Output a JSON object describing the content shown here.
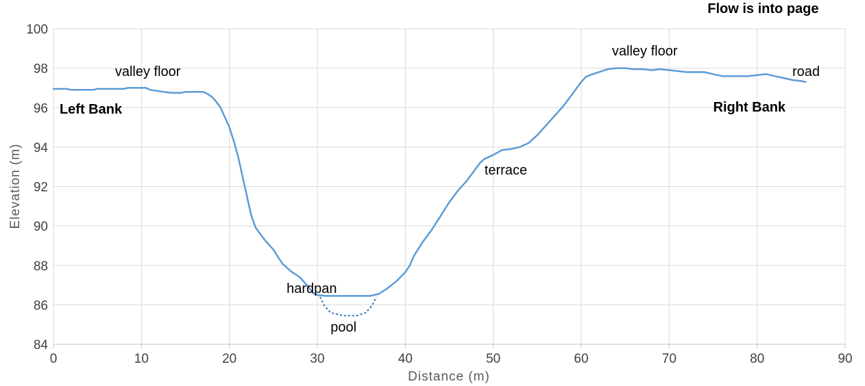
{
  "chart_data": {
    "type": "line",
    "title": "Flow is into page",
    "xlabel": "Distance (m)",
    "ylabel": "Elevation (m)",
    "xlim": [
      0,
      90
    ],
    "ylim": [
      84,
      100
    ],
    "xticks": [
      0,
      10,
      20,
      30,
      40,
      50,
      60,
      70,
      80,
      90
    ],
    "yticks": [
      84,
      86,
      88,
      90,
      92,
      94,
      96,
      98,
      100
    ],
    "grid": true,
    "series": [
      {
        "style": "solid",
        "color": "#5b9bd5",
        "points": [
          [
            0,
            96.95
          ],
          [
            1.5,
            96.95
          ],
          [
            2,
            96.9
          ],
          [
            4.5,
            96.9
          ],
          [
            5,
            96.95
          ],
          [
            8,
            96.95
          ],
          [
            8.5,
            97.0
          ],
          [
            10.5,
            97.0
          ],
          [
            11,
            96.9
          ],
          [
            12.5,
            96.8
          ],
          [
            13.5,
            96.75
          ],
          [
            14.5,
            96.75
          ],
          [
            15,
            96.8
          ],
          [
            17,
            96.8
          ],
          [
            17.5,
            96.7
          ],
          [
            18,
            96.55
          ],
          [
            18.5,
            96.3
          ],
          [
            19,
            96.0
          ],
          [
            19.5,
            95.5
          ],
          [
            20,
            95.0
          ],
          [
            20.5,
            94.3
          ],
          [
            21,
            93.5
          ],
          [
            21.5,
            92.5
          ],
          [
            22,
            91.5
          ],
          [
            22.5,
            90.5
          ],
          [
            23,
            89.9
          ],
          [
            23.5,
            89.6
          ],
          [
            24,
            89.3
          ],
          [
            25,
            88.8
          ],
          [
            26,
            88.1
          ],
          [
            27,
            87.7
          ],
          [
            28,
            87.4
          ],
          [
            29,
            86.9
          ],
          [
            29.5,
            86.6
          ],
          [
            30,
            86.5
          ],
          [
            31,
            86.45
          ],
          [
            36,
            86.45
          ],
          [
            37,
            86.55
          ],
          [
            38,
            86.85
          ],
          [
            39,
            87.2
          ],
          [
            40,
            87.65
          ],
          [
            40.5,
            88.0
          ],
          [
            41,
            88.5
          ],
          [
            42,
            89.2
          ],
          [
            43,
            89.8
          ],
          [
            44,
            90.5
          ],
          [
            45,
            91.2
          ],
          [
            46,
            91.8
          ],
          [
            47,
            92.3
          ],
          [
            48,
            92.9
          ],
          [
            48.5,
            93.2
          ],
          [
            49,
            93.4
          ],
          [
            50,
            93.6
          ],
          [
            51,
            93.85
          ],
          [
            52,
            93.9
          ],
          [
            53,
            94.0
          ],
          [
            54,
            94.2
          ],
          [
            55,
            94.6
          ],
          [
            56,
            95.1
          ],
          [
            57,
            95.6
          ],
          [
            58,
            96.1
          ],
          [
            59,
            96.7
          ],
          [
            60,
            97.3
          ],
          [
            60.5,
            97.55
          ],
          [
            61,
            97.65
          ],
          [
            62,
            97.8
          ],
          [
            63,
            97.95
          ],
          [
            64,
            98.0
          ],
          [
            65,
            98.0
          ],
          [
            66,
            97.95
          ],
          [
            67,
            97.95
          ],
          [
            68,
            97.9
          ],
          [
            69,
            97.95
          ],
          [
            70,
            97.9
          ],
          [
            71,
            97.85
          ],
          [
            72,
            97.8
          ],
          [
            73,
            97.8
          ],
          [
            74,
            97.8
          ],
          [
            75,
            97.7
          ],
          [
            76,
            97.6
          ],
          [
            77,
            97.6
          ],
          [
            78,
            97.6
          ],
          [
            79,
            97.6
          ],
          [
            80,
            97.65
          ],
          [
            81,
            97.7
          ],
          [
            82,
            97.6
          ],
          [
            83,
            97.5
          ],
          [
            84,
            97.4
          ],
          [
            85,
            97.35
          ],
          [
            85.5,
            97.3
          ]
        ]
      },
      {
        "style": "dotted",
        "color": "#2e75b6",
        "points": [
          [
            30.3,
            86.4
          ],
          [
            30.8,
            85.95
          ],
          [
            31.5,
            85.6
          ],
          [
            33,
            85.45
          ],
          [
            34.5,
            85.45
          ],
          [
            35.5,
            85.6
          ],
          [
            36.2,
            85.95
          ],
          [
            36.7,
            86.4
          ]
        ]
      }
    ],
    "annotations": [
      {
        "text": "Flow is into page",
        "x": 87,
        "y": 100.8,
        "anchor": "end",
        "bold": true
      },
      {
        "text": "valley floor",
        "x": 7,
        "y": 97.6,
        "anchor": "start",
        "bold": false
      },
      {
        "text": "Left Bank",
        "x": 0.7,
        "y": 95.7,
        "anchor": "start",
        "bold": true
      },
      {
        "text": "hardpan",
        "x": 26.5,
        "y": 86.6,
        "anchor": "start",
        "bold": false
      },
      {
        "text": "pool",
        "x": 31.5,
        "y": 84.65,
        "anchor": "start",
        "bold": false
      },
      {
        "text": "terrace",
        "x": 49,
        "y": 92.6,
        "anchor": "start",
        "bold": false
      },
      {
        "text": "valley floor",
        "x": 63.5,
        "y": 98.65,
        "anchor": "start",
        "bold": false
      },
      {
        "text": "road",
        "x": 84,
        "y": 97.6,
        "anchor": "start",
        "bold": false
      },
      {
        "text": "Right Bank",
        "x": 75,
        "y": 95.8,
        "anchor": "start",
        "bold": true
      }
    ]
  }
}
